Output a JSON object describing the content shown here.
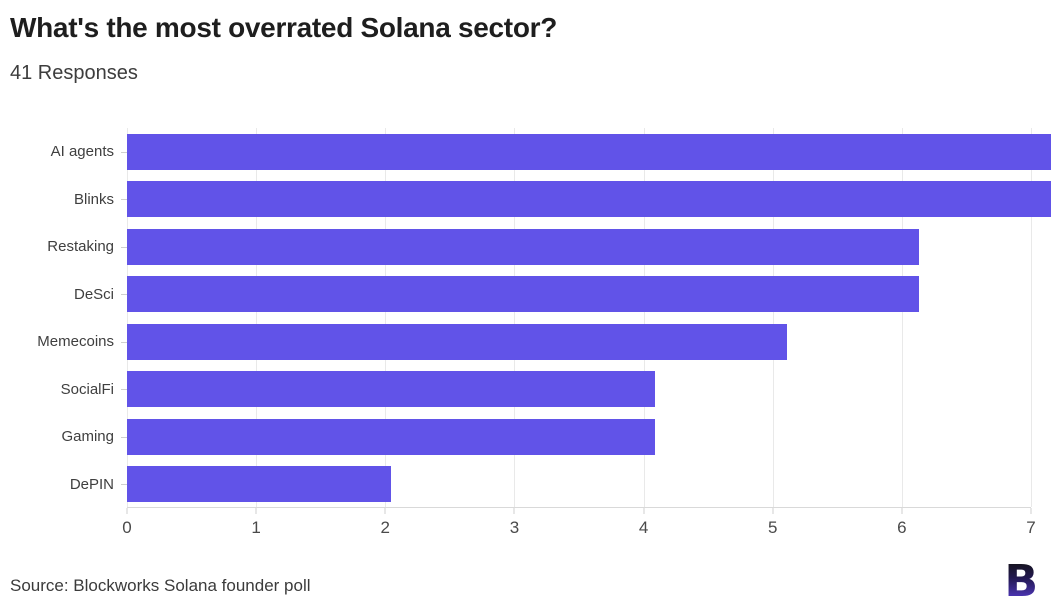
{
  "header": {
    "title": "What's the most overrated Solana sector?",
    "subtitle": "41 Responses"
  },
  "footer": {
    "source": "Source: Blockworks Solana founder poll",
    "logo_letter": "B",
    "logo_name": "blockworks-logo"
  },
  "colors": {
    "bar": "#6153e8",
    "grid": "#e9e9e9",
    "axis": "#d9d9d9",
    "title_text": "#1e1e1e",
    "body_text": "#3d3d3d"
  },
  "chart_data": {
    "type": "bar",
    "orientation": "horizontal",
    "title": "What's the most overrated Solana sector?",
    "subtitle": "41 Responses",
    "categories": [
      "AI agents",
      "Blinks",
      "Restaking",
      "DeSci",
      "Memecoins",
      "SocialFi",
      "Gaming",
      "DePIN"
    ],
    "values": [
      7,
      7,
      6,
      6,
      5,
      4,
      4,
      2
    ],
    "xlabel": "",
    "ylabel": "",
    "xlim": [
      0,
      7
    ],
    "xticks": [
      0,
      1,
      2,
      3,
      4,
      5,
      6,
      7
    ],
    "grid": true,
    "legend": false
  }
}
